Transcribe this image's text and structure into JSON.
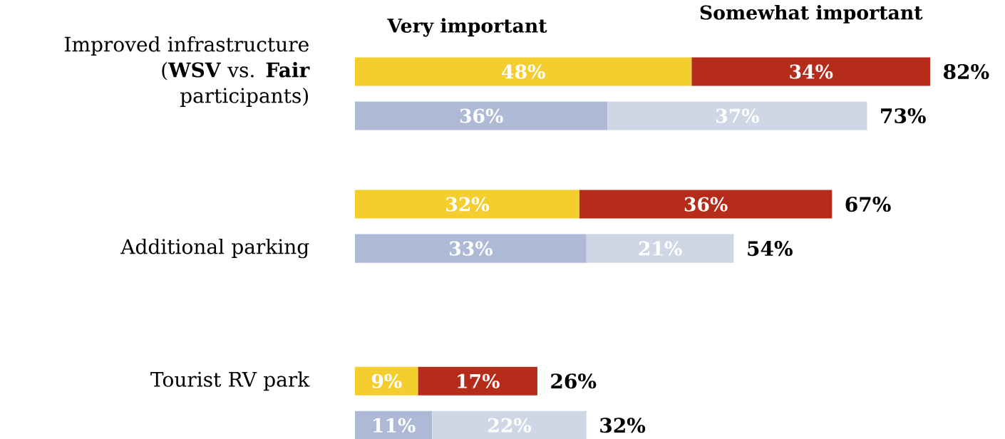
{
  "chart_data": {
    "type": "bar",
    "orientation": "horizontal",
    "stacked": true,
    "legend": "top",
    "categories": [
      "Improved infrastructure (**WSV** vs. **Fair** participants)",
      null,
      null,
      null,
      "Additional parking",
      null,
      null,
      "Tourist RV park",
      null
    ],
    "series": [
      {
        "name": "Very important",
        "colors": [
          "#f4cd2f",
          "#aeb9d6",
          null,
          "#f4cd2f",
          "#aeb9d6",
          null,
          null,
          "#f4cd2f",
          "#aeb9d6"
        ],
        "values": [
          48,
          36,
          null,
          32,
          33,
          null,
          null,
          9,
          11
        ],
        "value_labels": [
          "48%",
          "36%",
          null,
          "32%",
          "33%",
          null,
          null,
          "9%",
          "11%"
        ]
      },
      {
        "name": "Somewhat important",
        "colors": [
          "#b52c1a",
          "#cfd6e6",
          null,
          "#b52c1a",
          "#cfd6e6",
          null,
          null,
          "#b52c1a",
          "#cfd6e6"
        ],
        "values": [
          34,
          37,
          null,
          36,
          21,
          null,
          null,
          17,
          22
        ],
        "value_labels": [
          "34%",
          "37%",
          null,
          "36%",
          "21%",
          null,
          null,
          "17%",
          "22%"
        ]
      }
    ],
    "totals": [
      "82%",
      "73%",
      null,
      "67%",
      "54%",
      null,
      null,
      "26%",
      "32%"
    ]
  }
}
